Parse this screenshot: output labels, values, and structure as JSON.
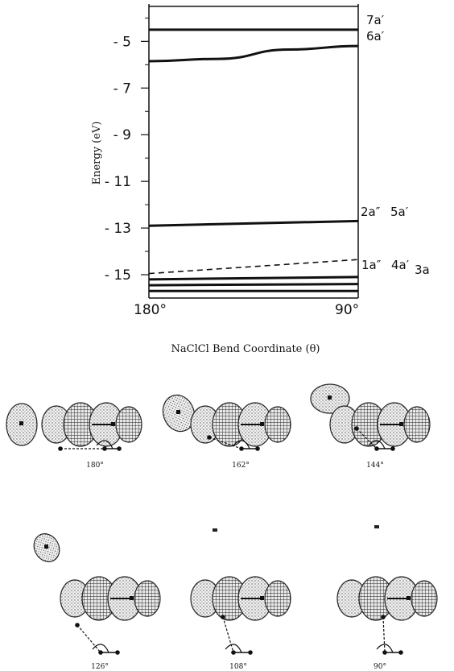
{
  "chart_data": {
    "type": "line",
    "ylabel": "Energy (eV)",
    "xlabel": "NaClCl  Bend Coordinate (θ)",
    "x_ticks": [
      "180°",
      "90°"
    ],
    "y_ticks": [
      "- 5",
      "- 7",
      "- 9",
      "- 11",
      "- 13",
      "- 15"
    ],
    "y_tick_values": [
      -5,
      -7,
      -9,
      -11,
      -13,
      -15
    ],
    "ylim": [
      -16.0,
      -3.4
    ],
    "xlim": [
      180,
      90
    ],
    "series": [
      {
        "name": "7a′",
        "dash": false,
        "x": [
          180,
          90
        ],
        "y": [
          -3.5,
          -3.5
        ]
      },
      {
        "name": "",
        "dash": false,
        "x": [
          180,
          90
        ],
        "y": [
          -4.5,
          -4.5
        ]
      },
      {
        "name": "6a′",
        "dash": false,
        "x": [
          180,
          150,
          120,
          90
        ],
        "y": [
          -5.85,
          -5.75,
          -5.35,
          -5.2
        ]
      },
      {
        "name": "2a″ 5a′",
        "dash": false,
        "x": [
          180,
          90
        ],
        "y": [
          -12.9,
          -12.7
        ]
      },
      {
        "name": "",
        "dash": true,
        "x": [
          180,
          90
        ],
        "y": [
          -14.95,
          -14.35
        ]
      },
      {
        "name": "1a″ 4a′",
        "dash": false,
        "x": [
          180,
          90
        ],
        "y": [
          -15.2,
          -15.1
        ]
      },
      {
        "name": "",
        "dash": false,
        "x": [
          180,
          90
        ],
        "y": [
          -15.45,
          -15.4
        ]
      },
      {
        "name": "3a",
        "dash": false,
        "x": [
          180,
          90
        ],
        "y": [
          -15.7,
          -15.7
        ]
      }
    ],
    "right_labels": [
      "7a′",
      "6a′",
      "2a″",
      "5a′",
      "1a″",
      "4a′",
      "3a"
    ]
  },
  "angles": [
    "180°",
    "162°",
    "144°",
    "126°",
    "108°",
    "90°"
  ]
}
